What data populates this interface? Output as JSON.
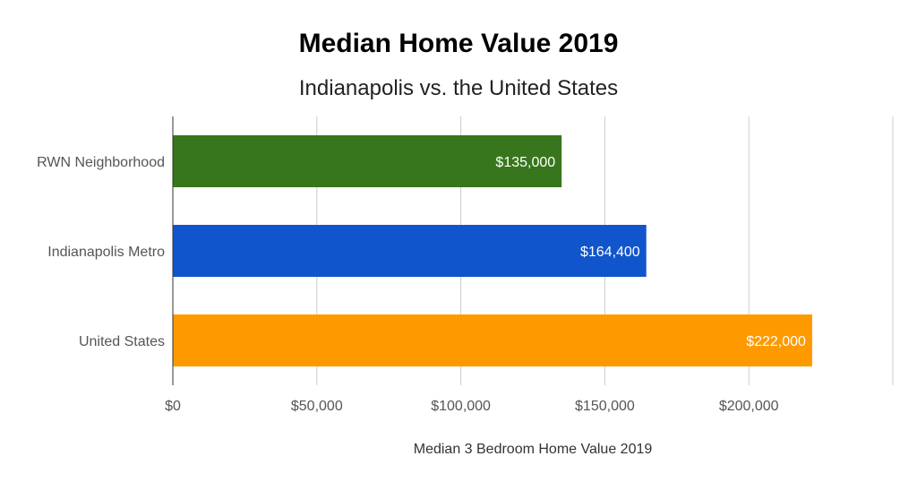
{
  "chart_data": {
    "type": "bar",
    "orientation": "horizontal",
    "title": "Median Home Value 2019",
    "subtitle": "Indianapolis vs. the United States",
    "xlabel": "Median 3 Bedroom Home Value 2019",
    "ylabel": "",
    "categories": [
      "RWN Neighborhood",
      "Indianapolis Metro",
      "United States"
    ],
    "values": [
      135000,
      164400,
      222000
    ],
    "data_labels": [
      "$135,000",
      "$164,400",
      "$222,000"
    ],
    "bar_colors": [
      "#38761d",
      "#1155cc",
      "#ff9900"
    ],
    "xlim": [
      0,
      250000
    ],
    "x_ticks": [
      0,
      50000,
      100000,
      150000,
      200000,
      250000
    ],
    "x_tick_labels": [
      "$0",
      "$50,000",
      "$100,000",
      "$150,000",
      "$200,000",
      ""
    ],
    "grid": true,
    "legend": "none"
  }
}
